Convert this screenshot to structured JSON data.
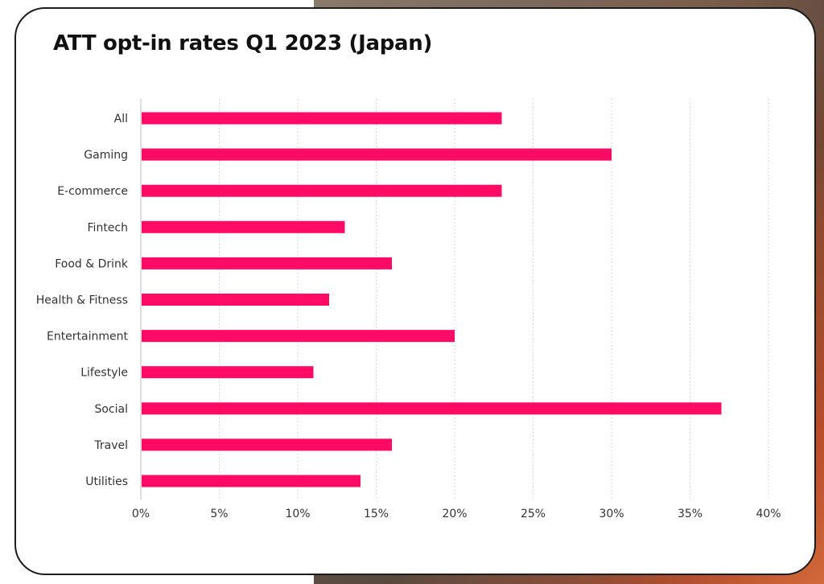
{
  "chart_data": {
    "type": "bar",
    "orientation": "horizontal",
    "title": "ATT opt-in rates Q1 2023 (Japan)",
    "categories": [
      "All",
      "Gaming",
      "E-commerce",
      "Fintech",
      "Food & Drink",
      "Health & Fitness",
      "Entertainment",
      "Lifestyle",
      "Social",
      "Travel",
      "Utilities"
    ],
    "values": [
      23,
      30,
      23,
      13,
      16,
      12,
      20,
      11,
      37,
      16,
      14
    ],
    "xlim": [
      0,
      40
    ],
    "xticks": [
      "0%",
      "5%",
      "10%",
      "15%",
      "20%",
      "25%",
      "30%",
      "35%",
      "40%"
    ],
    "xlabel": "",
    "ylabel": "",
    "grid": "vertical dotted",
    "bar_color": "#ff0a64"
  }
}
